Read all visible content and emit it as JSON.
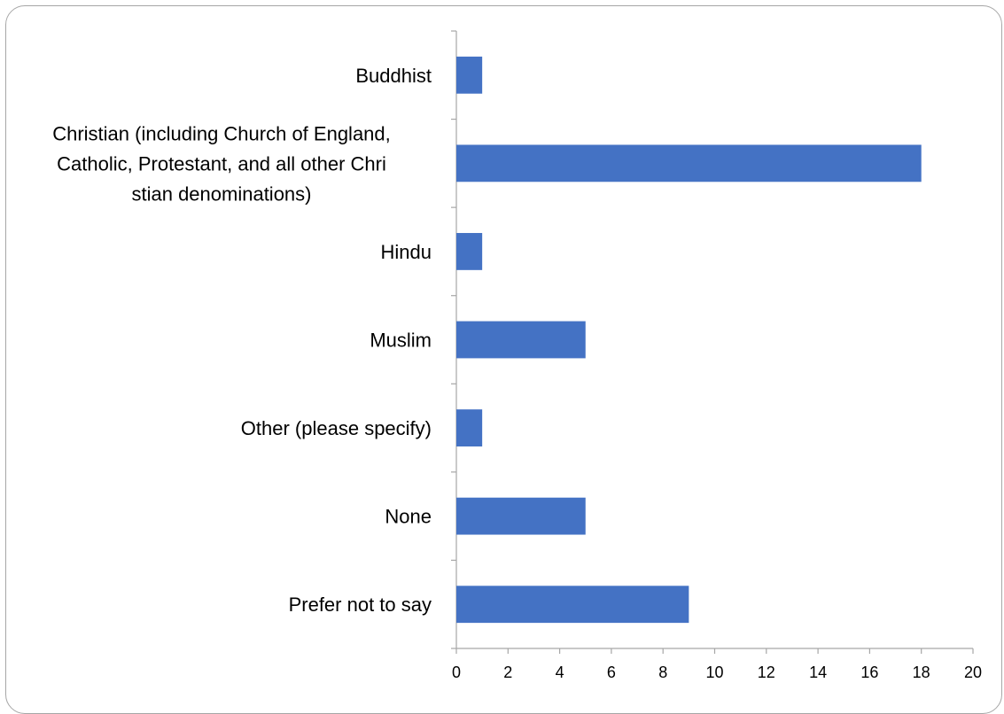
{
  "chart_data": {
    "type": "bar",
    "orientation": "horizontal",
    "title": "",
    "xlabel": "",
    "ylabel": "",
    "categories": [
      "Buddhist",
      "Christian (including Church of England, Catholic, Protestant, and all other Christian denominations)",
      "Hindu",
      "Muslim",
      "Other (please specify)",
      "None",
      "Prefer not to say"
    ],
    "category_display_lines": [
      [
        "Buddhist"
      ],
      [
        "Christian (including Church of England,",
        "Catholic, Protestant, and all other Chri",
        "stian denominations)"
      ],
      [
        "Hindu"
      ],
      [
        "Muslim"
      ],
      [
        "Other (please specify)"
      ],
      [
        "None"
      ],
      [
        "Prefer not to say"
      ]
    ],
    "values": [
      1,
      18,
      1,
      5,
      1,
      5,
      9
    ],
    "xlim": [
      0,
      20
    ],
    "xticks": [
      "0",
      "2",
      "4",
      "6",
      "8",
      "10",
      "12",
      "14",
      "16",
      "18",
      "20"
    ],
    "grid": false,
    "legend": "none",
    "bar_color": "#4472C4"
  }
}
